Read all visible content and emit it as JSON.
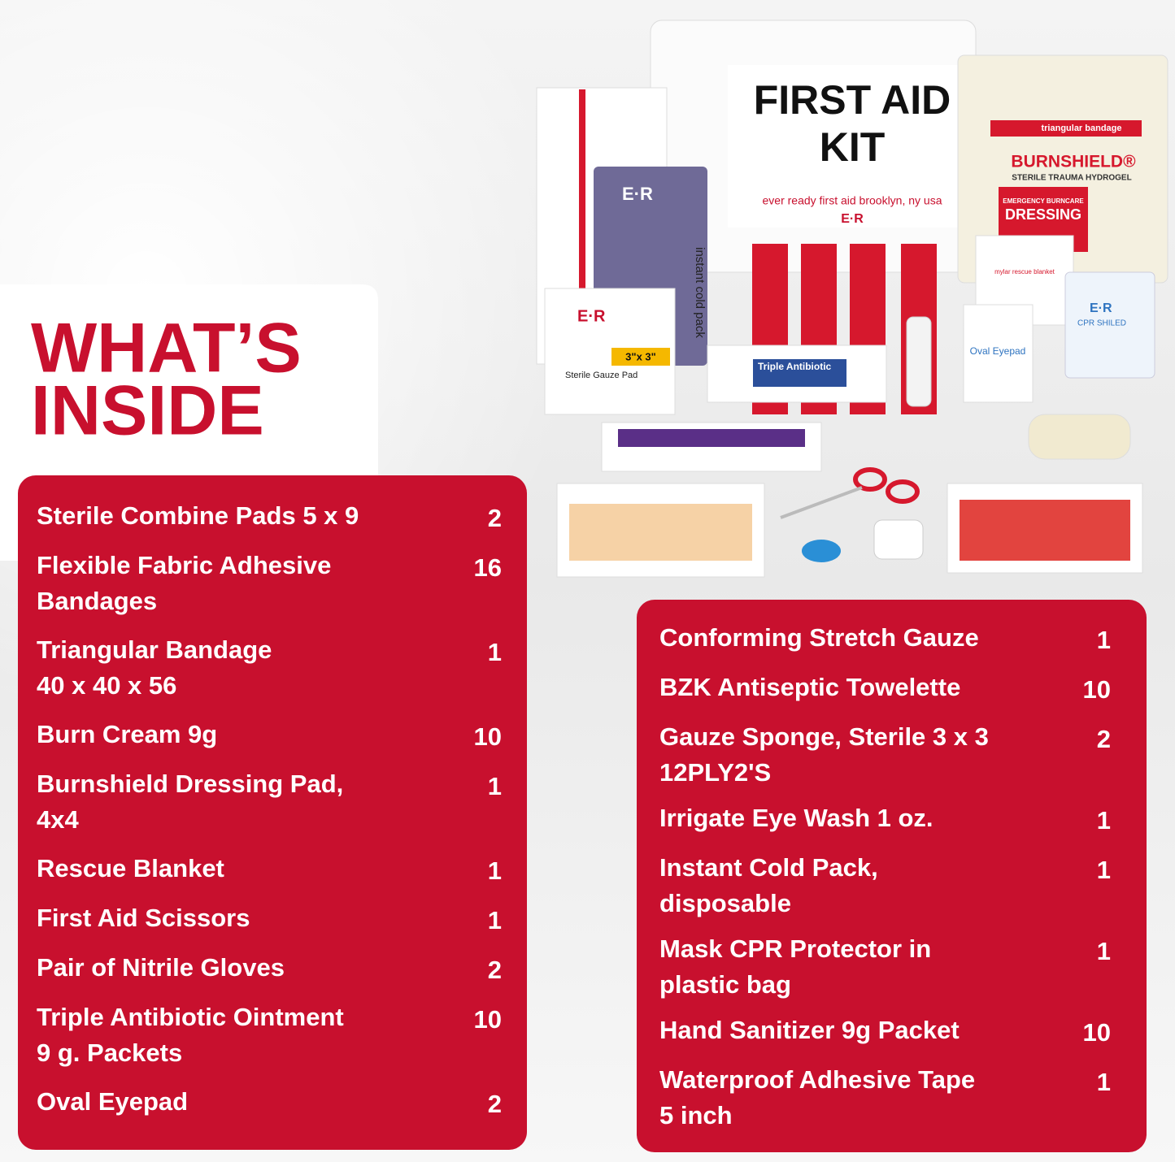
{
  "heading": [
    "WHAT’S",
    "INSIDE"
  ],
  "photo": {
    "kit_title": [
      "FIRST AID",
      "KIT"
    ],
    "kit_caption": "ever ready first aid   brooklyn, ny   usa",
    "brand": "E·R",
    "burnshield": "BURNSHIELD®",
    "burnshield_sub": "STERILE TRAUMA HYDROGEL",
    "burn_dressing": [
      "EMERGENCY BURNCARE",
      "DRESSING"
    ],
    "triangular": "triangular bandage",
    "cold_pack": "instant cold pack",
    "antibiotic": "Triple Antibiotic",
    "gauze_size": "3\"x 3\"",
    "gauze": "Sterile Gauze Pad",
    "eyepad": "Oval Eyepad",
    "cpr": "CPR SHILED",
    "mylar": "mylar rescue blanket"
  },
  "left_list": [
    {
      "lines": [
        "Sterile Combine Pads 5 x 9"
      ],
      "qty": 2
    },
    {
      "lines": [
        "Flexible Fabric Adhesive",
        "Bandages"
      ],
      "qty": 16
    },
    {
      "lines": [
        "Triangular Bandage",
        "40 x 40 x 56"
      ],
      "qty": 1
    },
    {
      "lines": [
        "Burn Cream 9g"
      ],
      "qty": 10
    },
    {
      "lines": [
        "Burnshield Dressing Pad,",
        "4x4"
      ],
      "qty": 1
    },
    {
      "lines": [
        "Rescue Blanket"
      ],
      "qty": 1
    },
    {
      "lines": [
        "First Aid Scissors"
      ],
      "qty": 1
    },
    {
      "lines": [
        "Pair of Nitrile Gloves"
      ],
      "qty": 2
    },
    {
      "lines": [
        "Triple Antibiotic Ointment",
        "9 g. Packets"
      ],
      "qty": 10
    },
    {
      "lines": [
        "Oval Eyepad"
      ],
      "qty": 2
    }
  ],
  "right_list": [
    {
      "lines": [
        "Conforming Stretch Gauze"
      ],
      "qty": 1
    },
    {
      "lines": [
        "BZK Antiseptic Towelette"
      ],
      "qty": 10
    },
    {
      "lines": [
        "Gauze Sponge, Sterile 3 x 3",
        "12PLY2'S"
      ],
      "qty": 2
    },
    {
      "lines": [
        "Irrigate Eye Wash 1 oz."
      ],
      "qty": 1
    },
    {
      "lines": [
        "Instant Cold Pack,",
        "disposable"
      ],
      "qty": 1
    },
    {
      "lines": [
        "Mask CPR Protector in",
        "plastic bag"
      ],
      "qty": 1
    },
    {
      "lines": [
        "Hand Sanitizer 9g Packet"
      ],
      "qty": 10
    },
    {
      "lines": [
        "Waterproof Adhesive Tape",
        "5 inch"
      ],
      "qty": 1
    }
  ]
}
